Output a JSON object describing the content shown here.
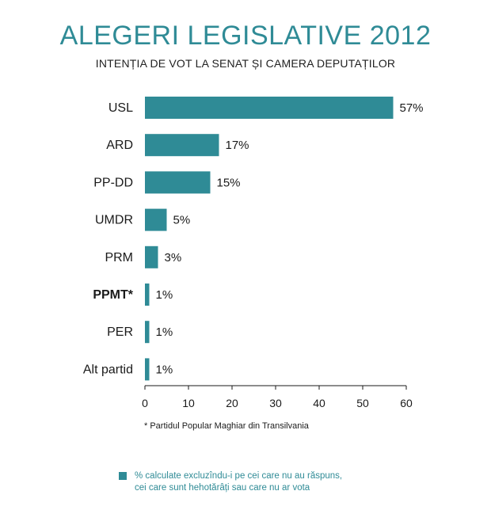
{
  "header": {
    "title": "ALEGERI LEGISLATIVE 2012",
    "subtitle": "INTENȚIA DE VOT LA SENAT ȘI CAMERA DEPUTAȚILOR"
  },
  "colors": {
    "bar": "#2f8b96",
    "text": "#1a1a1a",
    "title": "#2f8b96"
  },
  "chart_data": {
    "type": "bar",
    "orientation": "horizontal",
    "categories": [
      "USL",
      "ARD",
      "PP-DD",
      "UMDR",
      "PRM",
      "PPMT*",
      "PER",
      "Alt partid"
    ],
    "values": [
      57,
      17,
      15,
      5,
      3,
      1,
      1,
      1
    ],
    "value_labels": [
      "57%",
      "17%",
      "15%",
      "5%",
      "3%",
      "1%",
      "1%",
      "1%"
    ],
    "xlim": [
      0,
      60
    ],
    "xticks": [
      "0",
      "10",
      "20",
      "30",
      "40",
      "50",
      "60"
    ],
    "bold_categories": [
      "PPMT*"
    ],
    "grid": false
  },
  "footnote": "* Partidul Popular Maghiar din Transilvania",
  "legend": {
    "line1": "% calculate excluzîndu-i pe cei care nu au răspuns,",
    "line2": "cei care sunt hehotărâți sau care nu ar vota"
  }
}
